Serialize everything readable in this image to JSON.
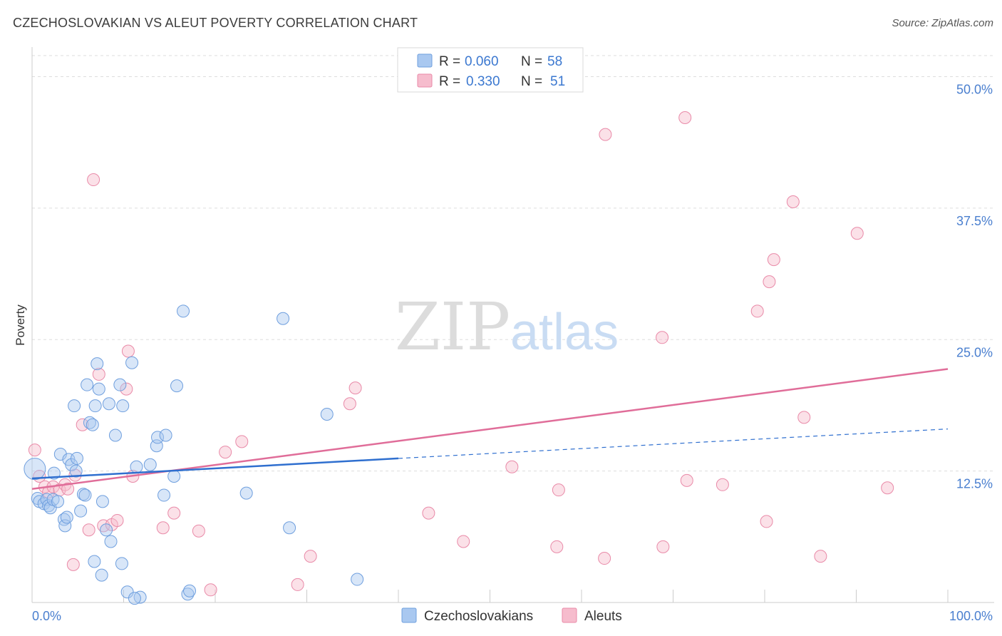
{
  "title": "CZECHOSLOVAKIAN VS ALEUT POVERTY CORRELATION CHART",
  "source": "Source: ZipAtlas.com",
  "watermark": {
    "part1": "ZIP",
    "part2": "atlas"
  },
  "colors": {
    "blue_fill": "#a9c8f0",
    "blue_stroke": "#6f9fde",
    "blue_line": "#2f6fcf",
    "pink_fill": "#f6bccd",
    "pink_stroke": "#e98aa8",
    "pink_line": "#e06d99",
    "axis_text": "#4a7fcf",
    "grid": "#dddddd"
  },
  "legend": {
    "rows": [
      {
        "r_label": "R =",
        "r_value": "0.060",
        "n_label": "N =",
        "n_value": "58"
      },
      {
        "r_label": "R =",
        "r_value": "0.330",
        "n_label": "N =",
        "n_value": "51"
      }
    ]
  },
  "chart_data": {
    "type": "scatter",
    "title": "CZECHOSLOVAKIAN VS ALEUT POVERTY CORRELATION CHART",
    "xlabel": "",
    "ylabel": "Poverty",
    "xlim": [
      0,
      100
    ],
    "ylim": [
      0,
      52
    ],
    "x_tick_labels": [
      "0.0%",
      "100.0%"
    ],
    "y_ticks": [
      12.5,
      25.0,
      37.5,
      50.0
    ],
    "y_tick_labels": [
      "12.5%",
      "25.0%",
      "37.5%",
      "50.0%"
    ],
    "grid": true,
    "legend_position": "top-center",
    "series": [
      {
        "name": "Czechoslovakians",
        "r": 0.06,
        "n": 58,
        "trend": {
          "x0": 0,
          "y0": 11.8,
          "x1": 40,
          "y1": 13.7,
          "x_dash_end": 100,
          "y_dash_end": 16.5
        },
        "points": [
          [
            0.3,
            12.7
          ],
          [
            0.6,
            9.9
          ],
          [
            0.8,
            9.6
          ],
          [
            1.3,
            9.4
          ],
          [
            1.6,
            9.8
          ],
          [
            1.8,
            9.2
          ],
          [
            2.0,
            9.0
          ],
          [
            2.3,
            9.8
          ],
          [
            2.4,
            12.3
          ],
          [
            2.8,
            9.6
          ],
          [
            3.1,
            14.1
          ],
          [
            3.5,
            7.9
          ],
          [
            3.6,
            7.3
          ],
          [
            3.8,
            8.1
          ],
          [
            4.0,
            13.6
          ],
          [
            4.3,
            13.1
          ],
          [
            4.6,
            18.7
          ],
          [
            4.8,
            12.5
          ],
          [
            4.9,
            13.7
          ],
          [
            5.3,
            8.7
          ],
          [
            5.6,
            10.3
          ],
          [
            5.8,
            10.2
          ],
          [
            6.0,
            20.7
          ],
          [
            6.3,
            17.1
          ],
          [
            6.6,
            16.9
          ],
          [
            6.8,
            3.9
          ],
          [
            6.9,
            18.7
          ],
          [
            7.1,
            22.7
          ],
          [
            7.3,
            20.3
          ],
          [
            7.6,
            2.6
          ],
          [
            7.7,
            9.6
          ],
          [
            8.1,
            6.9
          ],
          [
            8.4,
            18.9
          ],
          [
            8.6,
            5.8
          ],
          [
            9.1,
            15.9
          ],
          [
            9.6,
            20.7
          ],
          [
            9.8,
            3.7
          ],
          [
            9.9,
            18.7
          ],
          [
            10.4,
            1.0
          ],
          [
            10.9,
            22.8
          ],
          [
            11.4,
            12.9
          ],
          [
            11.8,
            0.5
          ],
          [
            12.9,
            13.1
          ],
          [
            13.6,
            14.9
          ],
          [
            13.7,
            15.7
          ],
          [
            14.4,
            10.2
          ],
          [
            14.6,
            15.9
          ],
          [
            15.5,
            12.0
          ],
          [
            15.8,
            20.6
          ],
          [
            16.5,
            27.7
          ],
          [
            17.0,
            0.8
          ],
          [
            17.2,
            1.1
          ],
          [
            23.4,
            10.4
          ],
          [
            27.4,
            27.0
          ],
          [
            28.1,
            7.1
          ],
          [
            32.2,
            17.9
          ],
          [
            35.5,
            2.2
          ],
          [
            11.2,
            0.4
          ]
        ]
      },
      {
        "name": "Aleuts",
        "r": 0.33,
        "n": 51,
        "trend": {
          "x0": 0,
          "y0": 10.8,
          "x1": 100,
          "y1": 22.2
        },
        "points": [
          [
            0.3,
            14.5
          ],
          [
            0.8,
            12.0
          ],
          [
            1.4,
            11.0
          ],
          [
            1.8,
            10.5
          ],
          [
            2.3,
            11.0
          ],
          [
            3.0,
            10.7
          ],
          [
            3.6,
            11.2
          ],
          [
            3.9,
            10.8
          ],
          [
            4.5,
            3.6
          ],
          [
            4.7,
            12.1
          ],
          [
            5.5,
            16.9
          ],
          [
            6.2,
            6.9
          ],
          [
            6.7,
            40.2
          ],
          [
            7.3,
            21.7
          ],
          [
            7.8,
            7.3
          ],
          [
            8.7,
            7.4
          ],
          [
            9.3,
            7.8
          ],
          [
            10.3,
            20.3
          ],
          [
            10.5,
            23.9
          ],
          [
            11.0,
            12.0
          ],
          [
            14.3,
            7.1
          ],
          [
            15.5,
            8.5
          ],
          [
            18.2,
            6.8
          ],
          [
            19.5,
            1.2
          ],
          [
            21.1,
            14.3
          ],
          [
            22.9,
            15.3
          ],
          [
            29.0,
            1.7
          ],
          [
            30.4,
            4.4
          ],
          [
            34.7,
            18.9
          ],
          [
            35.3,
            20.4
          ],
          [
            43.3,
            8.5
          ],
          [
            47.1,
            5.8
          ],
          [
            52.4,
            12.9
          ],
          [
            57.3,
            5.3
          ],
          [
            57.5,
            10.7
          ],
          [
            62.5,
            4.2
          ],
          [
            62.6,
            44.5
          ],
          [
            68.8,
            25.2
          ],
          [
            68.9,
            5.3
          ],
          [
            71.3,
            46.1
          ],
          [
            71.5,
            11.6
          ],
          [
            75.4,
            11.2
          ],
          [
            79.2,
            27.7
          ],
          [
            80.2,
            7.7
          ],
          [
            80.5,
            30.5
          ],
          [
            81.0,
            32.6
          ],
          [
            83.1,
            38.1
          ],
          [
            84.3,
            17.6
          ],
          [
            86.1,
            4.4
          ],
          [
            90.1,
            35.1
          ],
          [
            93.4,
            10.9
          ]
        ]
      }
    ]
  }
}
